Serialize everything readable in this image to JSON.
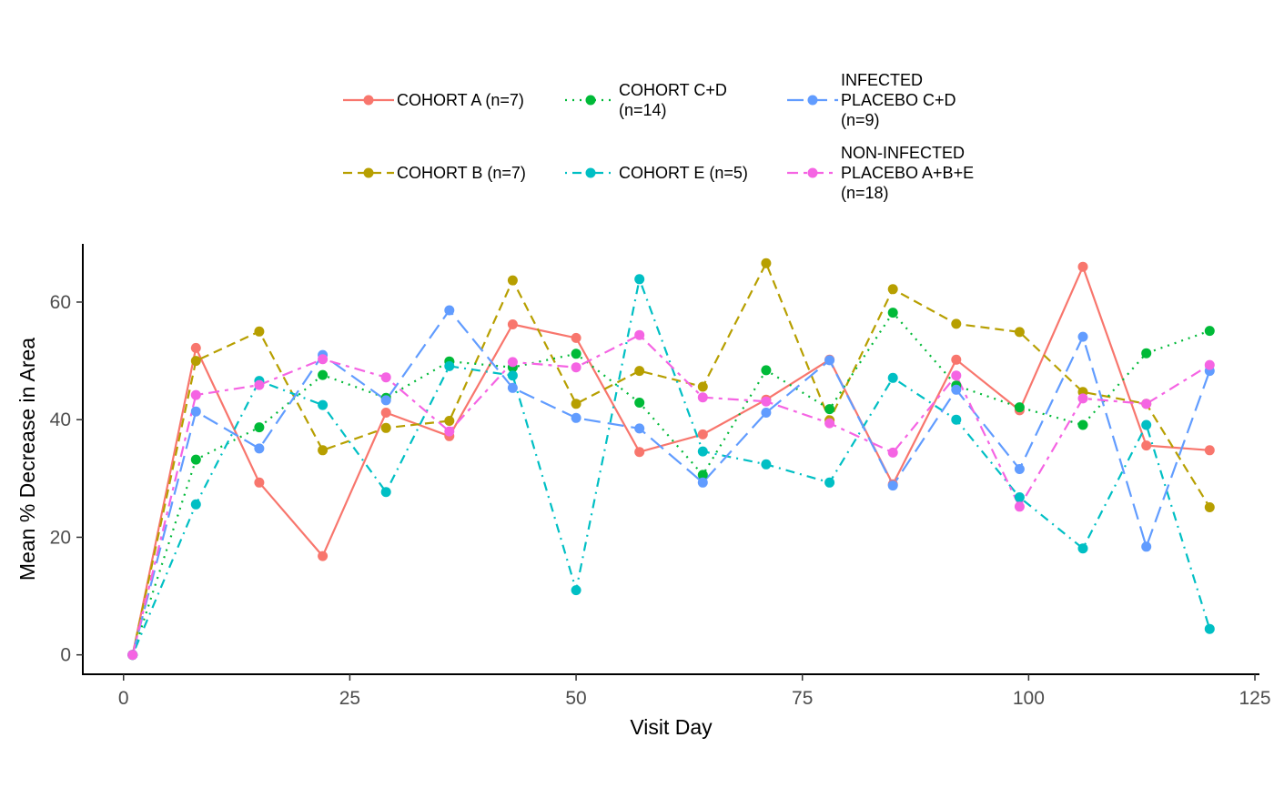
{
  "chart_data": {
    "type": "line",
    "xlabel": "Visit Day",
    "ylabel": "Mean % Decrease in Area",
    "xlim": [
      -4.5,
      125.5
    ],
    "ylim": [
      -3.3,
      69.9
    ],
    "x_ticks": [
      0,
      25,
      50,
      75,
      100,
      125
    ],
    "y_ticks": [
      0,
      20,
      40,
      60
    ],
    "grid": false,
    "legend_position": "top",
    "x": [
      1,
      8,
      15,
      22,
      29,
      36,
      43,
      50,
      57,
      64,
      71,
      78,
      85,
      92,
      99,
      106,
      113,
      120
    ],
    "series": [
      {
        "name": "COHORT A (n=7)",
        "color": "#F8766D",
        "dash": "solid",
        "values": [
          0,
          52.2,
          29.3,
          16.8,
          41.2,
          37.2,
          56.2,
          53.9,
          34.5,
          37.5,
          43.4,
          50.2,
          29.0,
          50.2,
          41.6,
          66.0,
          35.6,
          34.8
        ]
      },
      {
        "name": "COHORT B (n=7)",
        "color": "#B79F00",
        "dash": "dashed",
        "values": [
          0,
          50.0,
          55.0,
          34.8,
          38.6,
          39.8,
          63.7,
          42.7,
          48.3,
          45.6,
          66.6,
          39.9,
          62.2,
          56.3,
          54.9,
          44.7,
          42.7,
          25.1
        ]
      },
      {
        "name": "COHORT C+D\n(n=14)",
        "color": "#00BA38",
        "dash": "dotted",
        "values": [
          0,
          33.2,
          38.7,
          47.6,
          43.7,
          49.9,
          48.9,
          51.2,
          42.9,
          30.6,
          48.4,
          41.8,
          58.2,
          45.8,
          42.1,
          39.1,
          51.3,
          55.1
        ]
      },
      {
        "name": "COHORT E (n=5)",
        "color": "#00BFC4",
        "dash": "dotdash",
        "values": [
          0,
          25.6,
          46.6,
          42.5,
          27.7,
          49.1,
          47.5,
          11.0,
          63.9,
          34.6,
          32.4,
          29.3,
          47.1,
          40.0,
          26.8,
          18.1,
          39.1,
          4.4
        ]
      },
      {
        "name": "INFECTED\nPLACEBO C+D\n(n=9)",
        "color": "#619CFF",
        "dash": "longdash",
        "values": [
          0,
          41.4,
          35.1,
          51.0,
          43.3,
          58.6,
          45.4,
          40.3,
          38.5,
          29.3,
          41.2,
          50.1,
          28.8,
          45.1,
          31.6,
          54.1,
          18.4,
          48.3
        ]
      },
      {
        "name": "NON-INFECTED\nPLACEBO A+B+E\n(n=18)",
        "color": "#F564E3",
        "dash": "twodash",
        "values": [
          0,
          44.2,
          45.9,
          50.3,
          47.2,
          38.0,
          49.8,
          48.9,
          54.4,
          43.8,
          43.1,
          39.4,
          34.4,
          47.5,
          25.2,
          43.6,
          42.7,
          49.3
        ]
      }
    ]
  }
}
